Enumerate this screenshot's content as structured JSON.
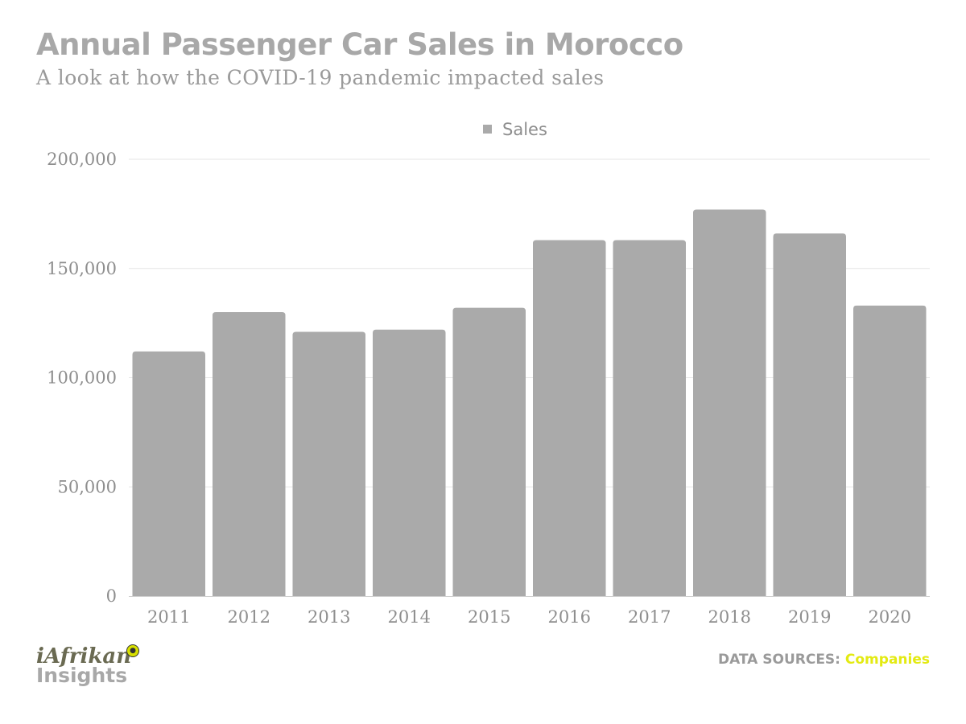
{
  "header": {
    "title": "Annual Passenger Car Sales in Morocco",
    "subtitle": "A look at how the COVID-19 pandemic impacted sales"
  },
  "footer": {
    "logo_top": "iAfrikan",
    "logo_bottom": "Insights",
    "sources_label": "DATA SOURCES:",
    "sources_value": "Companies"
  },
  "colors": {
    "bar": "#aaaaaa",
    "grid": "#e6e6e6",
    "accent": "#e3ea12"
  },
  "chart_data": {
    "type": "bar",
    "title": "Annual Passenger Car Sales in Morocco",
    "subtitle": "A look at how the COVID-19 pandemic impacted sales",
    "xlabel": "",
    "ylabel": "",
    "categories": [
      "2011",
      "2012",
      "2013",
      "2014",
      "2015",
      "2016",
      "2017",
      "2018",
      "2019",
      "2020"
    ],
    "series": [
      {
        "name": "Sales",
        "values": [
          112000,
          130000,
          121000,
          122000,
          132000,
          163000,
          163000,
          177000,
          166000,
          133000
        ]
      }
    ],
    "ylim": [
      0,
      200000
    ],
    "yticks": [
      0,
      50000,
      100000,
      150000,
      200000
    ],
    "ytick_labels": [
      "0",
      "50,000",
      "100,000",
      "150,000",
      "200,000"
    ],
    "grid": true,
    "legend": "top-center"
  }
}
